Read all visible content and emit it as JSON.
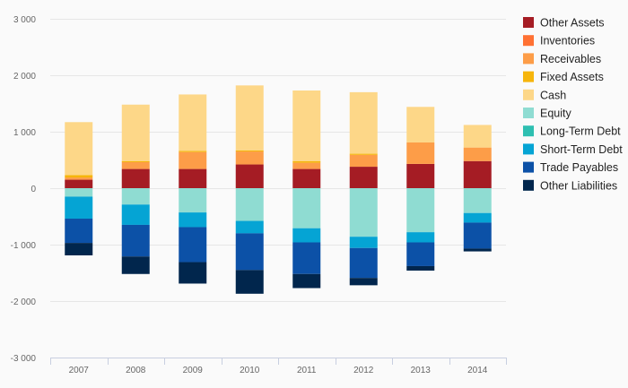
{
  "chart_data": {
    "type": "bar",
    "stacked": true,
    "categories": [
      "2007",
      "2008",
      "2009",
      "2010",
      "2011",
      "2012",
      "2013",
      "2014"
    ],
    "ylim": [
      -3000,
      3000
    ],
    "yticks": [
      -3000,
      -2000,
      -1000,
      0,
      1000,
      2000,
      3000
    ],
    "ytick_labels": [
      "-3 000",
      "-2 000",
      "-1 000",
      "0",
      "1 000",
      "2 000",
      "3 000"
    ],
    "grid": true,
    "legend_position": "right",
    "series": [
      {
        "name": "Other Assets",
        "color": "#a51c24",
        "values": [
          150,
          340,
          340,
          420,
          340,
          380,
          430,
          480
        ]
      },
      {
        "name": "Inventories",
        "color": "#ff7133",
        "values": [
          0,
          0,
          0,
          0,
          0,
          0,
          0,
          0
        ]
      },
      {
        "name": "Receivables",
        "color": "#fd9d48",
        "values": [
          40,
          120,
          300,
          230,
          110,
          210,
          380,
          240
        ]
      },
      {
        "name": "Fixed Assets",
        "color": "#f6b50b",
        "values": [
          40,
          20,
          20,
          20,
          30,
          20,
          0,
          0
        ]
      },
      {
        "name": "Cash",
        "color": "#fdd788",
        "values": [
          940,
          1000,
          1000,
          1150,
          1250,
          1090,
          630,
          400
        ]
      },
      {
        "name": "Equity",
        "color": "#8fdcd2",
        "values": [
          -150,
          -290,
          -430,
          -580,
          -710,
          -860,
          -780,
          -440
        ]
      },
      {
        "name": "Long-Term Debt",
        "color": "#2ebfb1",
        "values": [
          0,
          0,
          0,
          0,
          0,
          0,
          0,
          0
        ]
      },
      {
        "name": "Short-Term Debt",
        "color": "#05a4d4",
        "values": [
          -390,
          -360,
          -260,
          -220,
          -250,
          -200,
          -180,
          -170
        ]
      },
      {
        "name": "Trade Payables",
        "color": "#0c51a7",
        "values": [
          -430,
          -560,
          -620,
          -650,
          -560,
          -530,
          -420,
          -460
        ]
      },
      {
        "name": "Other Liabilities",
        "color": "#01264d",
        "values": [
          -220,
          -310,
          -380,
          -420,
          -250,
          -130,
          -80,
          -50
        ]
      }
    ]
  }
}
